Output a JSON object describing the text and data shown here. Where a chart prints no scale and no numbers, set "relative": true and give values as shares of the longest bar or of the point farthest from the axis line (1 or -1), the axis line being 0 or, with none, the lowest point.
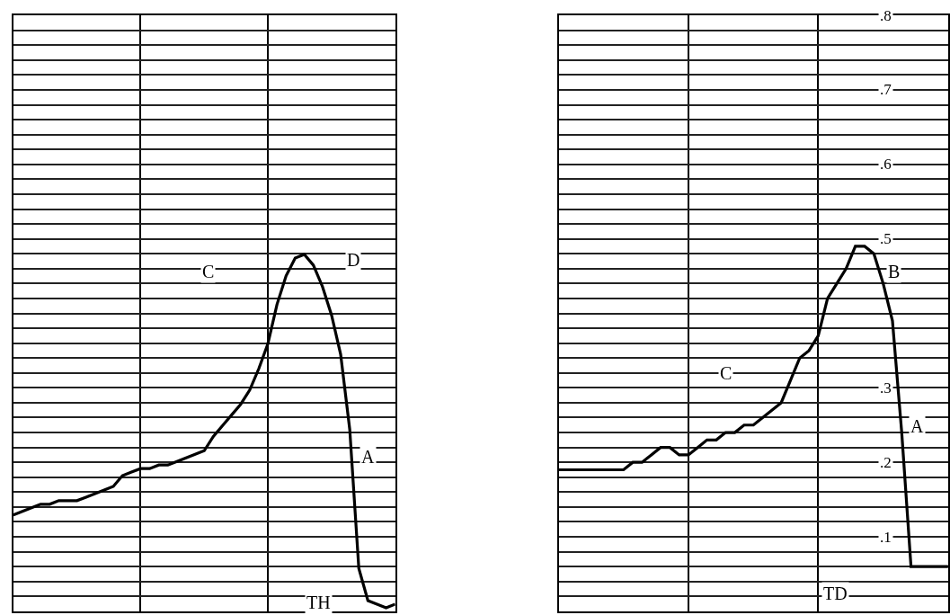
{
  "chart_data": [
    {
      "type": "line",
      "relative": true,
      "color": "#000000",
      "grid": true,
      "tick_labels": false,
      "categories": [
        null,
        null,
        null,
        null,
        null,
        null,
        null,
        null,
        null,
        null,
        null,
        null,
        null,
        null,
        null,
        null,
        null,
        null,
        null,
        null,
        null,
        null,
        null,
        null,
        null,
        null,
        null,
        null,
        null,
        null,
        null,
        null,
        null,
        null,
        null,
        null,
        null,
        null,
        null,
        null,
        null,
        null,
        null
      ],
      "values": [
        0.27,
        0.28,
        0.29,
        0.3,
        0.3,
        0.31,
        0.31,
        0.31,
        0.32,
        0.33,
        0.34,
        0.35,
        0.38,
        0.39,
        0.4,
        0.4,
        0.41,
        0.41,
        0.42,
        0.43,
        0.44,
        0.45,
        0.49,
        0.52,
        0.55,
        0.58,
        0.62,
        0.68,
        0.75,
        0.86,
        0.94,
        0.99,
        1.0,
        0.97,
        0.91,
        0.83,
        0.72,
        0.51,
        0.12,
        0.03,
        0.02,
        0.01,
        0.02
      ],
      "annotations": [
        "C",
        "D",
        "A",
        "TH"
      ]
    },
    {
      "type": "line",
      "color": "#000000",
      "grid": true,
      "tick_labels": "y",
      "ylim": [
        0,
        0.8
      ],
      "yticks": [
        {
          "value": 0.02,
          "label": null
        },
        {
          "value": 0.04,
          "label": null
        },
        {
          "value": 0.06,
          "label": null
        },
        {
          "value": 0.08,
          "label": null
        },
        {
          "value": 0.1,
          "label": ".1"
        },
        {
          "value": 0.12,
          "label": null
        },
        {
          "value": 0.14,
          "label": null
        },
        {
          "value": 0.16,
          "label": null
        },
        {
          "value": 0.18,
          "label": null
        },
        {
          "value": 0.2,
          "label": ".2"
        },
        {
          "value": 0.22,
          "label": null
        },
        {
          "value": 0.24,
          "label": null
        },
        {
          "value": 0.26,
          "label": null
        },
        {
          "value": 0.28,
          "label": null
        },
        {
          "value": 0.3,
          "label": ".3"
        },
        {
          "value": 0.32,
          "label": null
        },
        {
          "value": 0.34,
          "label": null
        },
        {
          "value": 0.36,
          "label": null
        },
        {
          "value": 0.38,
          "label": null
        },
        {
          "value": 0.4,
          "label": null
        },
        {
          "value": 0.42,
          "label": null
        },
        {
          "value": 0.44,
          "label": null
        },
        {
          "value": 0.46,
          "label": null
        },
        {
          "value": 0.48,
          "label": null
        },
        {
          "value": 0.5,
          "label": ".5"
        },
        {
          "value": 0.52,
          "label": null
        },
        {
          "value": 0.54,
          "label": null
        },
        {
          "value": 0.56,
          "label": null
        },
        {
          "value": 0.58,
          "label": null
        },
        {
          "value": 0.6,
          "label": ".6"
        },
        {
          "value": 0.62,
          "label": null
        },
        {
          "value": 0.64,
          "label": null
        },
        {
          "value": 0.66,
          "label": null
        },
        {
          "value": 0.68,
          "label": null
        },
        {
          "value": 0.7,
          "label": ".7"
        },
        {
          "value": 0.72,
          "label": null
        },
        {
          "value": 0.74,
          "label": null
        },
        {
          "value": 0.76,
          "label": null
        },
        {
          "value": 0.78,
          "label": null
        },
        {
          "value": 0.8,
          "label": ".8"
        }
      ],
      "categories": [
        null,
        null,
        null,
        null,
        null,
        null,
        null,
        null,
        null,
        null,
        null,
        null,
        null,
        null,
        null,
        null,
        null,
        null,
        null,
        null,
        null,
        null,
        null,
        null,
        null,
        null,
        null,
        null,
        null,
        null,
        null,
        null,
        null,
        null,
        null,
        null,
        null,
        null,
        null,
        null,
        null,
        null,
        null
      ],
      "values": [
        0.19,
        0.19,
        0.19,
        0.19,
        0.19,
        0.19,
        0.19,
        0.19,
        0.2,
        0.2,
        0.21,
        0.22,
        0.22,
        0.21,
        0.21,
        0.22,
        0.23,
        0.23,
        0.24,
        0.24,
        0.25,
        0.25,
        0.26,
        0.27,
        0.28,
        0.31,
        0.34,
        0.35,
        0.37,
        0.42,
        0.44,
        0.46,
        0.49,
        0.49,
        0.48,
        0.44,
        0.39,
        0.24,
        0.06,
        0.06,
        0.06,
        0.06,
        0.06
      ],
      "annotations": [
        "B",
        "C",
        "A",
        "TD"
      ]
    }
  ]
}
